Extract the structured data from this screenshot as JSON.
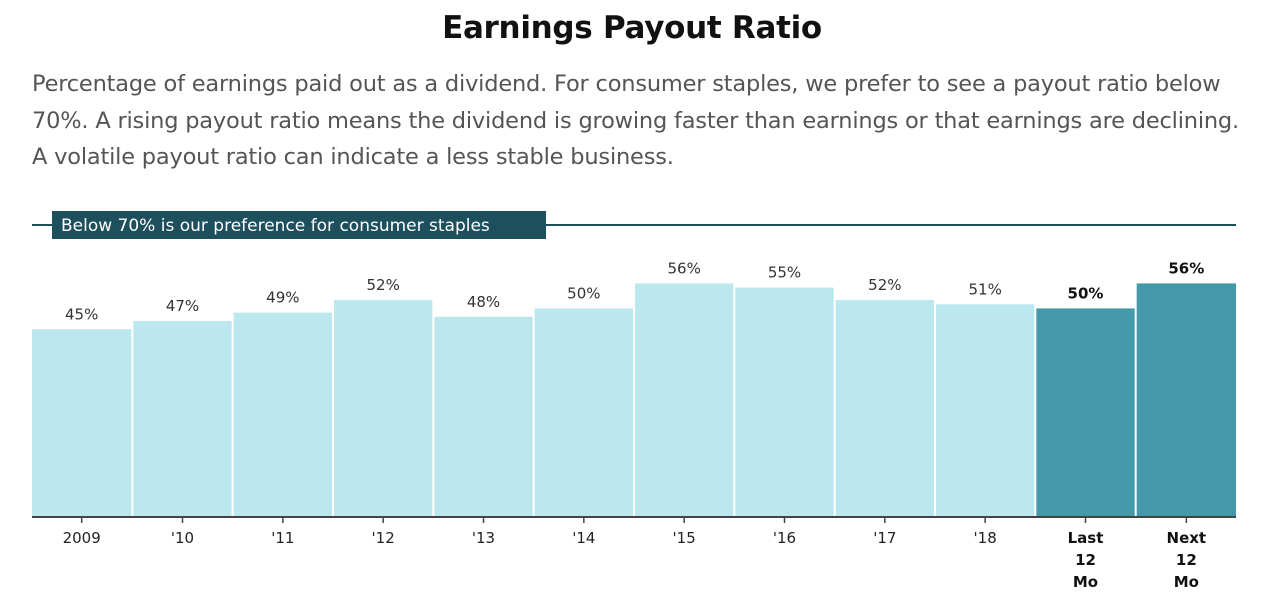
{
  "header": {
    "title": "Earnings Payout Ratio",
    "subtitle": "Percentage of earnings paid out as a dividend. For consumer staples, we prefer to see a payout ratio below 70%. A rising payout ratio means the dividend is growing faster than earnings or that earnings are declining. A volatile payout ratio can indicate a less stable business."
  },
  "chart_data": {
    "type": "bar",
    "categories": [
      "2009",
      "'10",
      "'11",
      "'12",
      "'13",
      "'14",
      "'15",
      "'16",
      "'17",
      "'18",
      "Last 12 Mo",
      "Next 12 Mo"
    ],
    "category_lines": [
      [
        "2009"
      ],
      [
        "'10"
      ],
      [
        "'11"
      ],
      [
        "'12"
      ],
      [
        "'13"
      ],
      [
        "'14"
      ],
      [
        "'15"
      ],
      [
        "'16"
      ],
      [
        "'17"
      ],
      [
        "'18"
      ],
      [
        "Last",
        "12",
        "Mo"
      ],
      [
        "Next",
        "12",
        "Mo"
      ]
    ],
    "values": [
      45,
      47,
      49,
      52,
      48,
      50,
      56,
      55,
      52,
      51,
      50,
      56
    ],
    "value_labels": [
      "45%",
      "47%",
      "49%",
      "52%",
      "48%",
      "50%",
      "56%",
      "55%",
      "52%",
      "51%",
      "50%",
      "56%"
    ],
    "highlighted": [
      false,
      false,
      false,
      false,
      false,
      false,
      false,
      false,
      false,
      false,
      true,
      true
    ],
    "threshold": {
      "value": 70,
      "label": "Below 70% is our preference for consumer staples"
    },
    "ylim": [
      0,
      70
    ],
    "colors": {
      "bar": "#bae8ee",
      "highlight": "#4398aa",
      "threshold": "#1e4f5c",
      "axis": "#444444"
    }
  }
}
